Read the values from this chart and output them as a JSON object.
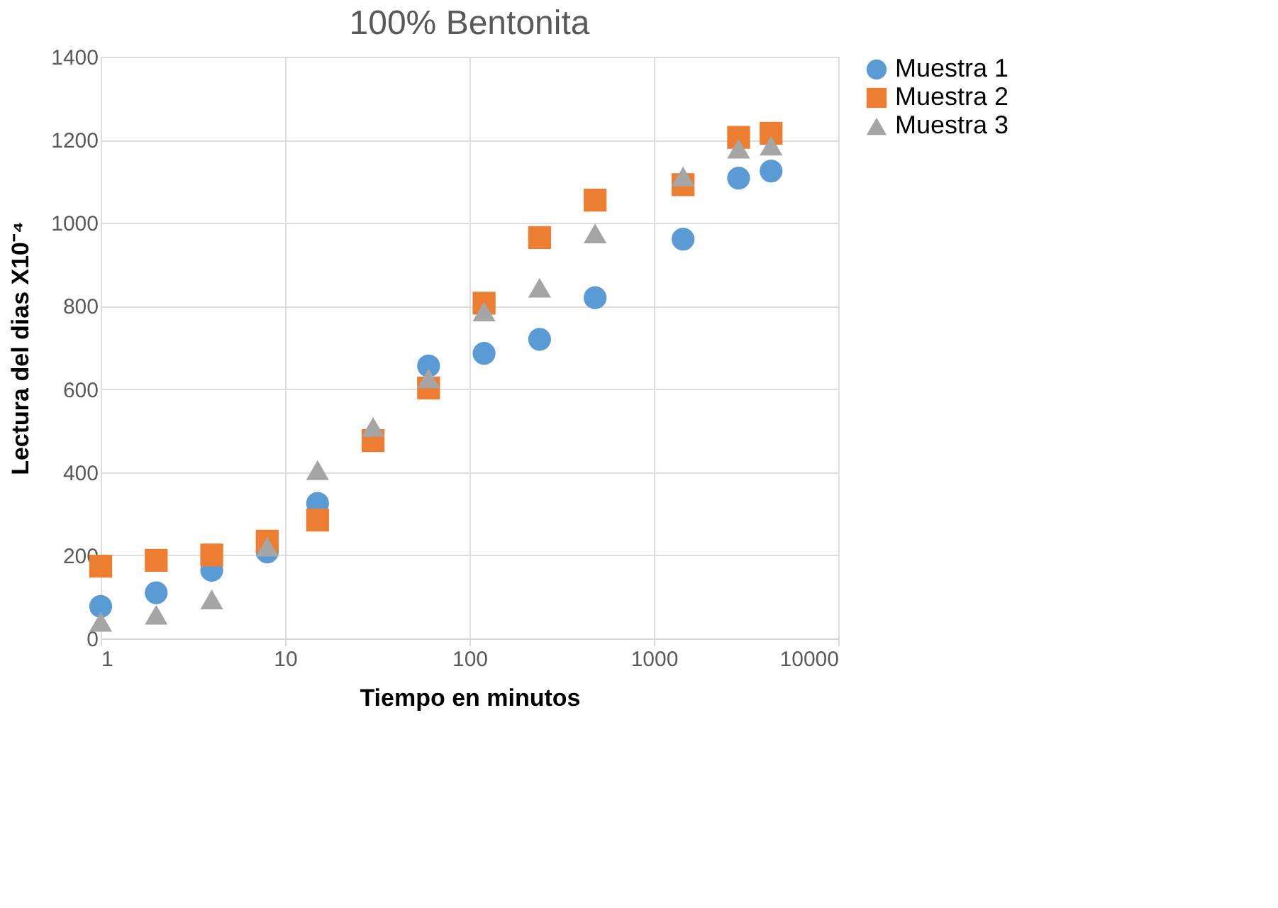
{
  "chart_data": {
    "type": "scatter",
    "title": "100% Bentonita",
    "xlabel": "Tiempo en minutos",
    "ylabel": "Lectura del dias X10⁻⁴",
    "x": [
      1,
      2,
      4,
      8,
      15,
      30,
      60,
      120,
      240,
      480,
      1440,
      2880,
      4320
    ],
    "log": "x",
    "xlim": [
      1,
      10000
    ],
    "xticks": [
      1,
      10,
      100,
      1000,
      10000
    ],
    "ylim": [
      0,
      1400
    ],
    "yticks": [
      0,
      200,
      400,
      600,
      800,
      1000,
      1200,
      1400
    ],
    "grid": true,
    "legend": "right",
    "series": [
      {
        "name": "Muestra 1",
        "color": "#5b9bd5",
        "marker": "circle",
        "values": [
          77,
          110,
          164,
          208,
          325,
          null,
          656,
          686,
          720,
          820,
          961,
          1108,
          1125
        ]
      },
      {
        "name": "Muestra 2",
        "color": "#ed7d31",
        "marker": "square",
        "values": [
          174,
          188,
          201,
          234,
          285,
          476,
          603,
          807,
          965,
          1055,
          1092,
          1206,
          1216
        ]
      },
      {
        "name": "Muestra 3",
        "color": "#a5a5a5",
        "marker": "triangle",
        "values": [
          40,
          57,
          94,
          221,
          405,
          509,
          626,
          787,
          844,
          975,
          1112,
          1179,
          1186
        ]
      }
    ]
  }
}
